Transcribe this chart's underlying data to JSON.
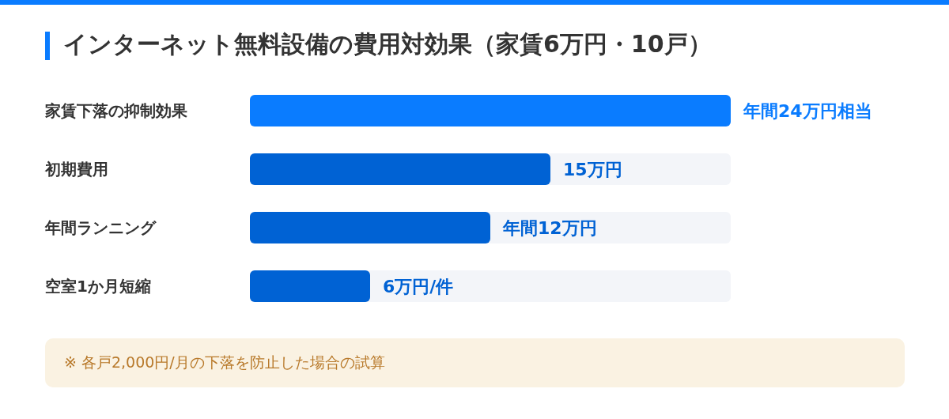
{
  "chart_data": {
    "type": "bar",
    "orientation": "horizontal",
    "title": "インターネット無料設備の費用対効果（家賃6万円・10戸）",
    "categories": [
      "家賃下落の抑制効果",
      "初期費用",
      "年間ランニング",
      "空室1か月短縮"
    ],
    "values": [
      24,
      15,
      12,
      6
    ],
    "colors": [
      "#0a7cff",
      "#0062d4",
      "#0062d4",
      "#0062d4"
    ],
    "value_labels": [
      "年間24万円相当",
      "15万円",
      "年間12万円",
      "6万円/件"
    ],
    "annotations": [
      "※ 各戸2,000円/月の下落を防止した場合の試算"
    ]
  }
}
